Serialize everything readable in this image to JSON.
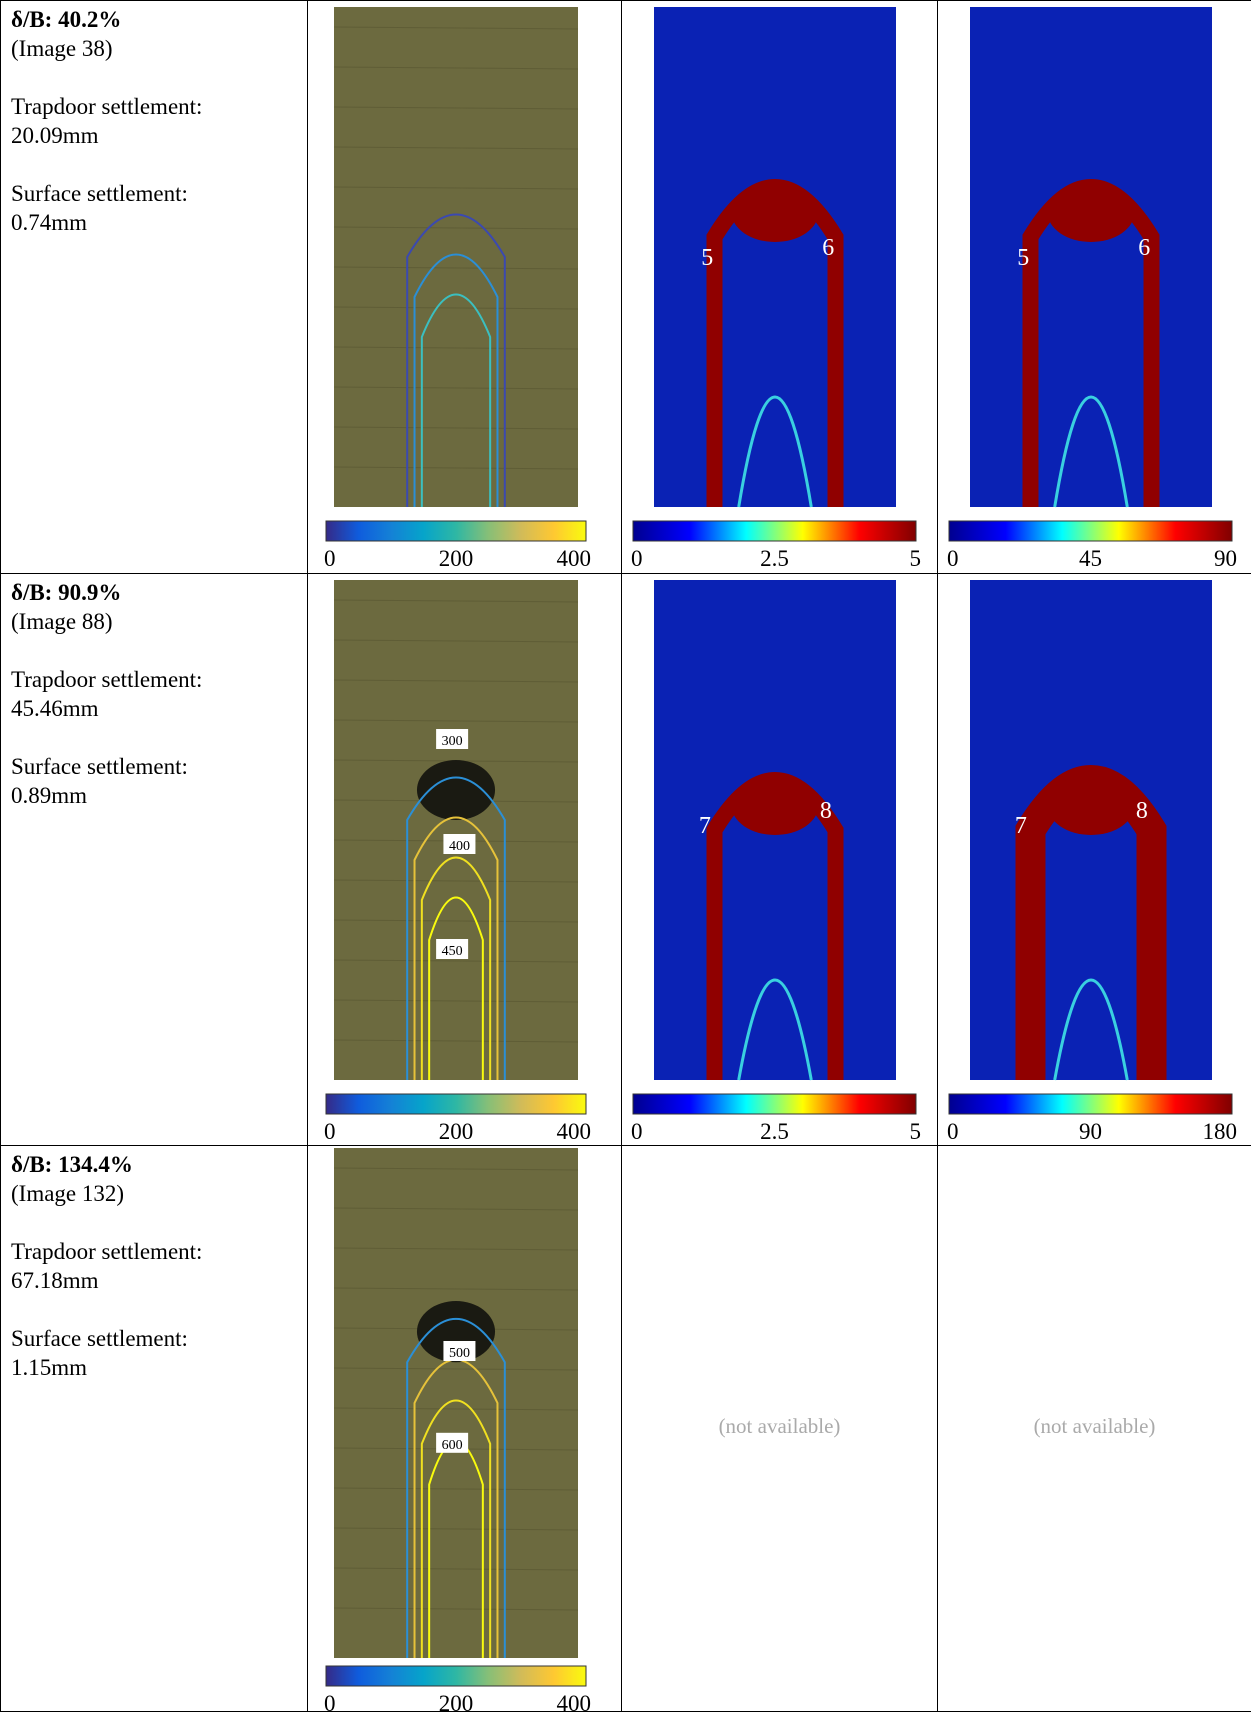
{
  "table": {
    "rows": [
      {
        "heading": "δ/B: 40.2%",
        "image": "(Image 38)",
        "trapdoor_label": "Trapdoor settlement:",
        "trapdoor": "20.09mm",
        "surface_label": "Surface settlement:",
        "surface": "0.74mm",
        "panels": [
          {
            "colorbar": [
              "0",
              "200",
              "400"
            ],
            "labels": []
          },
          {
            "colorbar": [
              "0",
              "2.5",
              "5"
            ],
            "labels": [
              "5",
              "6"
            ]
          },
          {
            "colorbar": [
              "0",
              "45",
              "90"
            ],
            "labels": [
              "5",
              "6"
            ]
          }
        ]
      },
      {
        "heading": "δ/B: 90.9%",
        "image": "(Image 88)",
        "trapdoor_label": "Trapdoor settlement:",
        "trapdoor": "45.46mm",
        "surface_label": "Surface settlement:",
        "surface": "0.89mm",
        "panels": [
          {
            "colorbar": [
              "0",
              "200",
              "400"
            ],
            "labels": [
              "300",
              "400",
              "450"
            ]
          },
          {
            "colorbar": [
              "0",
              "2.5",
              "5"
            ],
            "labels": [
              "7",
              "8"
            ]
          },
          {
            "colorbar": [
              "0",
              "90",
              "180"
            ],
            "labels": [
              "7",
              "8"
            ]
          }
        ]
      },
      {
        "heading": "δ/B: 134.4%",
        "image": "(Image 132)",
        "trapdoor_label": "Trapdoor settlement:",
        "trapdoor": "67.18mm",
        "surface_label": "Surface settlement:",
        "surface": "1.15mm",
        "panels": [
          {
            "colorbar": [
              "0",
              "200",
              "400"
            ],
            "labels": [
              "500",
              "600"
            ]
          },
          {
            "note": "(not available)"
          },
          {
            "note": "(not available)"
          }
        ]
      }
    ]
  }
}
